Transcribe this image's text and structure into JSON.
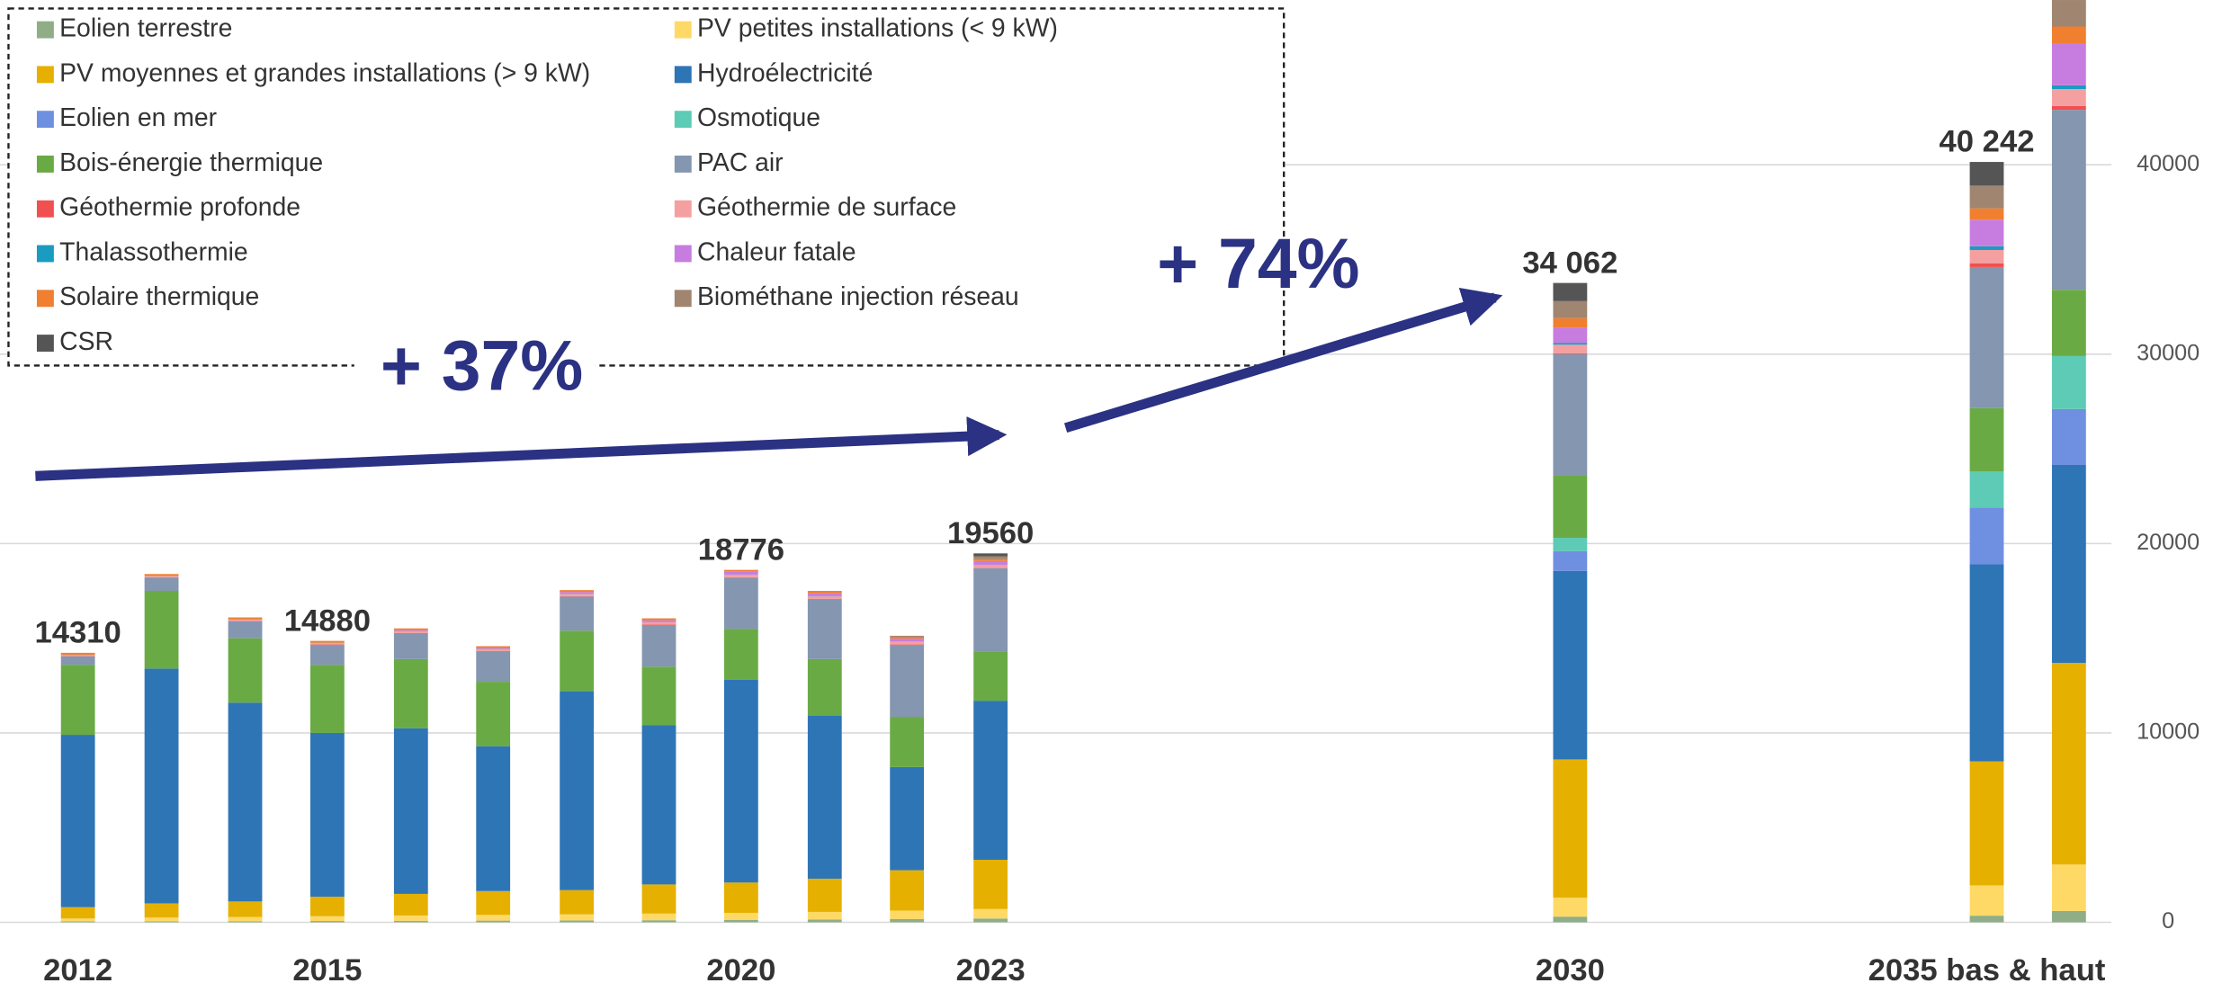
{
  "chart_data": {
    "type": "stacked-bar",
    "categories": [
      "2012",
      null,
      null,
      "2015",
      null,
      null,
      null,
      null,
      "2020",
      null,
      null,
      "2023",
      "2030",
      "2035 bas & haut",
      null
    ],
    "total_labels": [
      "14310",
      null,
      null,
      "14880",
      null,
      null,
      null,
      null,
      "18776",
      null,
      null,
      "19560",
      "34 062",
      "40 242",
      null
    ],
    "annotations": [
      "+ 37%",
      "+ 74%"
    ],
    "ylim": [
      0,
      48700
    ],
    "yticks": [
      0,
      10000,
      20000,
      30000,
      40000
    ],
    "grid": true,
    "legend": "top-left",
    "series": [
      {
        "name": "Eolien terrestre",
        "color": "#8fae88",
        "values": [
          50,
          50,
          60,
          70,
          80,
          90,
          100,
          110,
          120,
          150,
          170,
          200,
          300,
          350,
          600
        ]
      },
      {
        "name": "PV petites installations (< 9 kW)",
        "color": "#ffd966",
        "values": [
          150,
          200,
          220,
          250,
          280,
          300,
          320,
          350,
          380,
          400,
          450,
          500,
          1000,
          1600,
          2450
        ]
      },
      {
        "name": "PV moyennes et grandes installations (> 9 kW)",
        "color": "#e6b000",
        "values": [
          600,
          750,
          820,
          1030,
          1140,
          1260,
          1280,
          1540,
          1600,
          1750,
          2130,
          2600,
          7300,
          6550,
          10650
        ]
      },
      {
        "name": "Hydroélectricité",
        "color": "#2e75b6",
        "values": [
          9100,
          12400,
          10500,
          8650,
          8750,
          7650,
          10500,
          8400,
          10700,
          8600,
          5450,
          8400,
          9950,
          10400,
          10450
        ]
      },
      {
        "name": "Eolien en mer",
        "color": "#6f8fe0",
        "values": [
          0,
          0,
          0,
          0,
          0,
          0,
          0,
          0,
          0,
          0,
          0,
          0,
          1050,
          3000,
          2950
        ]
      },
      {
        "name": "Osmotique",
        "color": "#5dcbb5",
        "values": [
          0,
          0,
          0,
          0,
          0,
          0,
          0,
          0,
          0,
          0,
          0,
          0,
          700,
          1900,
          2800
        ]
      },
      {
        "name": "Bois-énergie thermique",
        "color": "#6aaa45",
        "values": [
          3700,
          4100,
          3400,
          3600,
          3650,
          3400,
          3200,
          3100,
          2700,
          3000,
          2650,
          2600,
          3300,
          3350,
          3500
        ]
      },
      {
        "name": "PAC air",
        "color": "#8496b0",
        "values": [
          450,
          700,
          900,
          1050,
          1350,
          1600,
          1800,
          2200,
          2700,
          3150,
          3800,
          4400,
          6400,
          7450,
          9500
        ]
      },
      {
        "name": "Géothermie profonde",
        "color": "#f05050",
        "values": [
          20,
          20,
          20,
          20,
          20,
          20,
          20,
          20,
          20,
          20,
          20,
          20,
          50,
          200,
          200
        ]
      },
      {
        "name": "Géothermie de surface",
        "color": "#f4a0a0",
        "values": [
          50,
          60,
          70,
          80,
          90,
          100,
          110,
          120,
          130,
          140,
          150,
          150,
          450,
          700,
          900
        ]
      },
      {
        "name": "Thalassothermie",
        "color": "#1a9bc0",
        "values": [
          10,
          10,
          10,
          10,
          10,
          10,
          10,
          10,
          10,
          10,
          10,
          10,
          100,
          200,
          200
        ]
      },
      {
        "name": "Chaleur fatale",
        "color": "#c77de0",
        "values": [
          0,
          0,
          0,
          0,
          50,
          50,
          100,
          100,
          150,
          150,
          150,
          200,
          800,
          1400,
          2200
        ]
      },
      {
        "name": "Solaire thermique",
        "color": "#f07f30",
        "values": [
          100,
          100,
          100,
          100,
          100,
          100,
          100,
          100,
          100,
          100,
          100,
          100,
          500,
          600,
          900
        ]
      },
      {
        "name": "Biométhane injection réseau",
        "color": "#a08570",
        "values": [
          0,
          0,
          0,
          0,
          0,
          0,
          0,
          0,
          0,
          30,
          50,
          150,
          900,
          1200,
          1400
        ]
      },
      {
        "name": "CSR",
        "color": "#555555",
        "values": [
          0,
          0,
          0,
          0,
          0,
          0,
          0,
          0,
          0,
          0,
          0,
          150,
          960,
          1250,
          900
        ]
      }
    ]
  }
}
